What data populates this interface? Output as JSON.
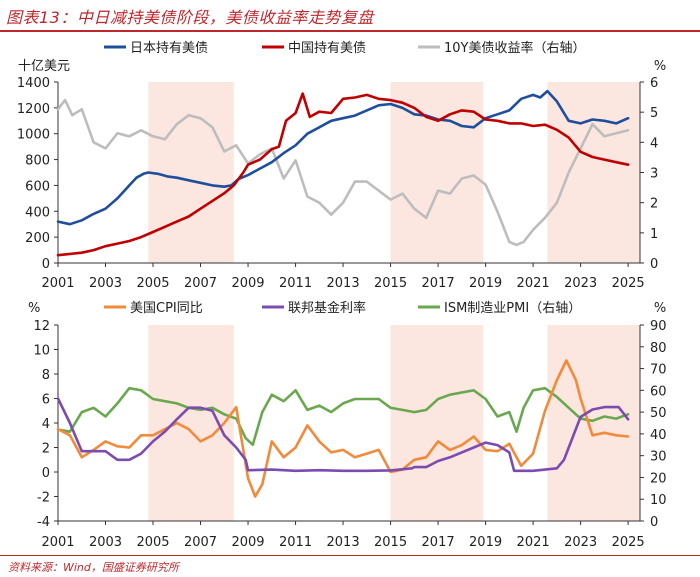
{
  "title": "图表13：中日减持美债阶段，美债收益率走势复盘",
  "source": "资料来源：Wind，国盛证券研究所",
  "colors": {
    "shade": "#fbe7df",
    "blue": "#1f4e9d",
    "blue_light": "#6b86b4",
    "red": "#c00000",
    "gray": "#bdbdbd",
    "orange": "#f28a3c",
    "purple": "#7c4bb0",
    "green": "#6aa84f",
    "green_light": "#a8cf8e",
    "axis": "#333333"
  },
  "chart_data": [
    {
      "type": "line",
      "title": "",
      "y_left_unit": "十亿美元",
      "y_right_unit": "%",
      "ylim_left": [
        0,
        1400
      ],
      "yticks_left": [
        "0",
        "200",
        "400",
        "600",
        "800",
        "1000",
        "1200",
        "1400"
      ],
      "ylim_right": [
        0,
        6
      ],
      "yticks_right": [
        "0",
        "1",
        "2",
        "3",
        "4",
        "5",
        "6"
      ],
      "xlim": [
        2001,
        2025.5
      ],
      "xticks": [
        "2001",
        "2003",
        "2005",
        "2007",
        "2009",
        "2011",
        "2013",
        "2015",
        "2017",
        "2019",
        "2021",
        "2023",
        "2025"
      ],
      "shaded_periods": [
        [
          2004.8,
          2008.4
        ],
        [
          2015.0,
          2018.9
        ],
        [
          2021.6,
          2025.5
        ]
      ],
      "series": [
        {
          "name": "日本持有美债",
          "axis": "left",
          "color_key": "blue",
          "x": [
            2001,
            2001.5,
            2002,
            2002.5,
            2003,
            2003.5,
            2004,
            2004.3,
            2004.6,
            2004.8,
            2005.2,
            2005.6,
            2006,
            2006.5,
            2007,
            2007.5,
            2008,
            2008.3,
            2008.6,
            2009,
            2009.5,
            2010,
            2010.5,
            2011,
            2011.5,
            2012,
            2012.5,
            2013,
            2013.5,
            2014,
            2014.5,
            2015,
            2015.5,
            2016,
            2016.5,
            2017,
            2017.5,
            2018,
            2018.5,
            2019,
            2019.5,
            2020,
            2020.5,
            2021,
            2021.3,
            2021.6,
            2022,
            2022.5,
            2023,
            2023.5,
            2024,
            2024.5,
            2025
          ],
          "values": [
            320,
            300,
            330,
            380,
            420,
            500,
            600,
            660,
            690,
            700,
            690,
            670,
            660,
            640,
            620,
            600,
            590,
            600,
            650,
            680,
            730,
            780,
            850,
            910,
            1000,
            1050,
            1100,
            1120,
            1140,
            1180,
            1220,
            1230,
            1200,
            1150,
            1140,
            1110,
            1100,
            1060,
            1050,
            1120,
            1150,
            1180,
            1270,
            1300,
            1280,
            1330,
            1250,
            1100,
            1080,
            1110,
            1100,
            1080,
            1120
          ]
        },
        {
          "name": "中国持有美债",
          "axis": "left",
          "color_key": "red",
          "x": [
            2001,
            2001.5,
            2002,
            2002.5,
            2003,
            2003.5,
            2004,
            2004.5,
            2005,
            2005.5,
            2006,
            2006.5,
            2007,
            2007.5,
            2008,
            2008.4,
            2008.8,
            2009,
            2009.5,
            2010,
            2010.3,
            2010.6,
            2011,
            2011.3,
            2011.6,
            2012,
            2012.5,
            2013,
            2013.5,
            2014,
            2014.5,
            2015,
            2015.5,
            2016,
            2016.5,
            2017,
            2017.5,
            2018,
            2018.5,
            2019,
            2019.5,
            2020,
            2020.5,
            2021,
            2021.5,
            2022,
            2022.5,
            2023,
            2023.5,
            2024,
            2024.5,
            2025
          ],
          "values": [
            60,
            70,
            80,
            100,
            130,
            150,
            170,
            200,
            240,
            280,
            320,
            360,
            420,
            480,
            540,
            600,
            700,
            760,
            800,
            880,
            900,
            1100,
            1160,
            1310,
            1130,
            1170,
            1160,
            1270,
            1280,
            1300,
            1270,
            1260,
            1240,
            1200,
            1130,
            1100,
            1150,
            1180,
            1170,
            1110,
            1100,
            1080,
            1080,
            1060,
            1070,
            1030,
            970,
            860,
            820,
            800,
            780,
            760
          ]
        },
        {
          "name": "10Y美债收益率（右轴）",
          "axis": "right",
          "color_key": "gray",
          "x": [
            2001,
            2001.3,
            2001.6,
            2002,
            2002.5,
            2003,
            2003.5,
            2004,
            2004.5,
            2005,
            2005.5,
            2006,
            2006.5,
            2007,
            2007.5,
            2008,
            2008.5,
            2009,
            2009.5,
            2010,
            2010.5,
            2011,
            2011.5,
            2012,
            2012.5,
            2013,
            2013.5,
            2014,
            2014.5,
            2015,
            2015.5,
            2016,
            2016.5,
            2017,
            2017.5,
            2018,
            2018.5,
            2019,
            2019.5,
            2020,
            2020.3,
            2020.6,
            2021,
            2021.5,
            2022,
            2022.5,
            2023,
            2023.5,
            2024,
            2024.5,
            2025
          ],
          "values": [
            5.1,
            5.4,
            4.9,
            5.1,
            4.0,
            3.8,
            4.3,
            4.2,
            4.4,
            4.2,
            4.1,
            4.6,
            4.9,
            4.8,
            4.5,
            3.7,
            3.9,
            3.3,
            3.6,
            3.8,
            2.8,
            3.4,
            2.2,
            2.0,
            1.6,
            2.0,
            2.7,
            2.7,
            2.4,
            2.1,
            2.3,
            1.8,
            1.5,
            2.4,
            2.3,
            2.8,
            2.9,
            2.6,
            1.7,
            0.7,
            0.6,
            0.7,
            1.1,
            1.5,
            2.0,
            3.0,
            3.8,
            4.6,
            4.2,
            4.3,
            4.4
          ]
        }
      ]
    },
    {
      "type": "line",
      "title": "",
      "y_left_unit": "%",
      "y_right_unit": "%",
      "ylim_left": [
        -4,
        12
      ],
      "yticks_left": [
        "-4",
        "-2",
        "0",
        "2",
        "4",
        "6",
        "8",
        "10",
        "12"
      ],
      "ylim_right": [
        0,
        90
      ],
      "yticks_right": [
        "0",
        "10",
        "20",
        "30",
        "40",
        "50",
        "60",
        "70",
        "80",
        "90"
      ],
      "xlim": [
        2001,
        2025.5
      ],
      "xticks": [
        "2001",
        "2003",
        "2005",
        "2007",
        "2009",
        "2011",
        "2013",
        "2015",
        "2017",
        "2019",
        "2021",
        "2023",
        "2025"
      ],
      "shaded_periods": [
        [
          2004.8,
          2008.4
        ],
        [
          2015.0,
          2018.9
        ],
        [
          2021.6,
          2025.5
        ]
      ],
      "series": [
        {
          "name": "美国CPI同比",
          "axis": "left",
          "color_key": "orange",
          "x": [
            2001,
            2001.5,
            2002,
            2002.5,
            2003,
            2003.5,
            2004,
            2004.5,
            2005,
            2005.5,
            2006,
            2006.5,
            2007,
            2007.5,
            2008,
            2008.5,
            2009,
            2009.3,
            2009.6,
            2010,
            2010.5,
            2011,
            2011.5,
            2012,
            2012.5,
            2013,
            2013.5,
            2014,
            2014.5,
            2015,
            2015.5,
            2016,
            2016.5,
            2017,
            2017.5,
            2018,
            2018.5,
            2019,
            2019.5,
            2020,
            2020.5,
            2021,
            2021.5,
            2022,
            2022.4,
            2022.8,
            2023,
            2023.5,
            2024,
            2024.5,
            2025
          ],
          "values": [
            3.5,
            3.0,
            1.2,
            1.8,
            2.5,
            2.1,
            2.0,
            3.0,
            3.0,
            3.5,
            4.0,
            3.5,
            2.5,
            3.0,
            4.0,
            5.3,
            -0.5,
            -2.0,
            -1.0,
            2.5,
            1.2,
            2.0,
            3.8,
            2.5,
            1.6,
            1.8,
            1.2,
            1.5,
            1.8,
            0.0,
            0.2,
            1.0,
            1.2,
            2.5,
            1.8,
            2.2,
            2.9,
            1.8,
            1.7,
            2.3,
            0.5,
            1.5,
            5.0,
            7.5,
            9.1,
            7.5,
            6.0,
            3.0,
            3.2,
            3.0,
            2.9
          ]
        },
        {
          "name": "联邦基金利率",
          "axis": "left",
          "color_key": "purple",
          "x": [
            2001,
            2001.5,
            2002,
            2003,
            2003.5,
            2004,
            2004.5,
            2005,
            2005.5,
            2006,
            2006.5,
            2007,
            2007.5,
            2008,
            2008.5,
            2008.9,
            2009,
            2010,
            2011,
            2012,
            2013,
            2014,
            2015,
            2015.9,
            2016,
            2016.5,
            2017,
            2017.5,
            2018,
            2018.5,
            2019,
            2019.5,
            2020,
            2020.2,
            2021,
            2022,
            2022.3,
            2022.6,
            2023,
            2023.5,
            2024,
            2024.6,
            2025
          ],
          "values": [
            6.0,
            4.0,
            1.7,
            1.7,
            1.0,
            1.0,
            1.5,
            2.5,
            3.3,
            4.3,
            5.25,
            5.25,
            5.0,
            3.0,
            2.0,
            1.0,
            0.15,
            0.2,
            0.1,
            0.15,
            0.1,
            0.1,
            0.13,
            0.3,
            0.4,
            0.4,
            0.9,
            1.2,
            1.6,
            2.0,
            2.4,
            2.2,
            1.6,
            0.1,
            0.1,
            0.3,
            1.0,
            2.5,
            4.5,
            5.1,
            5.3,
            5.3,
            4.3
          ]
        },
        {
          "name": "ISM制造业PMI（右轴）",
          "axis": "right",
          "color_key": "green",
          "x": [
            2001,
            2001.5,
            2002,
            2002.5,
            2003,
            2003.5,
            2004,
            2004.5,
            2005,
            2005.5,
            2006,
            2006.5,
            2007,
            2007.5,
            2008,
            2008.5,
            2008.9,
            2009.2,
            2009.6,
            2010,
            2010.5,
            2011,
            2011.5,
            2012,
            2012.5,
            2013,
            2013.5,
            2014,
            2014.5,
            2015,
            2015.5,
            2016,
            2016.5,
            2017,
            2017.5,
            2018,
            2018.5,
            2019,
            2019.5,
            2020,
            2020.3,
            2020.6,
            2021,
            2021.5,
            2022,
            2022.5,
            2023,
            2023.5,
            2024,
            2024.5,
            2025
          ],
          "values": [
            42,
            41,
            50,
            52,
            48,
            54,
            61,
            60,
            56,
            55,
            54,
            52,
            51,
            52,
            49,
            47,
            38,
            35,
            50,
            58,
            55,
            60,
            51,
            53,
            50,
            54,
            56,
            56,
            56,
            52,
            51,
            50,
            51,
            56,
            58,
            59,
            60,
            56,
            48,
            50,
            41,
            52,
            60,
            61,
            57,
            52,
            47,
            46,
            48,
            47,
            49
          ]
        }
      ]
    }
  ]
}
